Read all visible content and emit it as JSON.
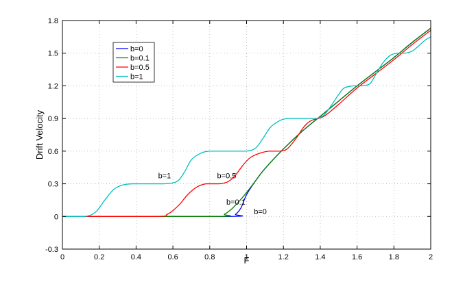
{
  "chart_data": {
    "type": "line",
    "xlabel": "F",
    "ylabel": "Drift Velocity",
    "xlim": [
      0,
      2
    ],
    "ylim": [
      -0.3,
      1.8
    ],
    "x_ticks": [
      "0",
      "0.2",
      "0.4",
      "0.6",
      "0.8",
      "1",
      "1.2",
      "1.4",
      "1.6",
      "1.8",
      "2"
    ],
    "y_ticks": [
      "-0.3",
      "0",
      "0.3",
      "0.6",
      "0.9",
      "1.2",
      "1.5",
      "1.8"
    ],
    "grid": true,
    "legend_position": "top-left",
    "series": [
      {
        "name": "b=0",
        "color": "#0000ff",
        "x": [
          0,
          0.9,
          0.94,
          0.97,
          1.0,
          1.05,
          1.1,
          1.2,
          1.3,
          1.4,
          1.5,
          1.6,
          1.7,
          1.8,
          1.9,
          2.0
        ],
        "y": [
          0,
          0,
          0.02,
          0.08,
          0.2,
          0.33,
          0.44,
          0.62,
          0.78,
          0.92,
          1.06,
          1.2,
          1.33,
          1.46,
          1.6,
          1.73
        ]
      },
      {
        "name": "b=0.1",
        "color": "#008000",
        "x": [
          0,
          0.84,
          0.88,
          0.92,
          0.96,
          1.0,
          1.05,
          1.1,
          1.2,
          1.3,
          1.4,
          1.5,
          1.6,
          1.7,
          1.8,
          1.9,
          2.0
        ],
        "y": [
          0,
          0,
          0.02,
          0.07,
          0.14,
          0.22,
          0.33,
          0.44,
          0.62,
          0.78,
          0.92,
          1.06,
          1.2,
          1.33,
          1.46,
          1.6,
          1.73
        ]
      },
      {
        "name": "b=0.5",
        "color": "#ff0000",
        "x": [
          0,
          0.5,
          0.57,
          0.63,
          0.68,
          0.73,
          0.78,
          0.85,
          0.9,
          0.94,
          0.98,
          1.02,
          1.07,
          1.12,
          1.18,
          1.22,
          1.27,
          1.31,
          1.35,
          1.42,
          1.5,
          1.6,
          1.7,
          1.8,
          1.9,
          2.0
        ],
        "y": [
          0,
          0,
          0.02,
          0.1,
          0.2,
          0.27,
          0.3,
          0.3,
          0.32,
          0.38,
          0.47,
          0.54,
          0.58,
          0.6,
          0.6,
          0.62,
          0.72,
          0.82,
          0.88,
          0.92,
          1.03,
          1.18,
          1.31,
          1.44,
          1.58,
          1.71
        ]
      },
      {
        "name": "b=1",
        "color": "#00bfbf",
        "x": [
          0,
          0.12,
          0.18,
          0.23,
          0.28,
          0.33,
          0.38,
          0.45,
          0.55,
          0.62,
          0.66,
          0.7,
          0.75,
          0.8,
          0.9,
          1.0,
          1.05,
          1.09,
          1.13,
          1.18,
          1.22,
          1.28,
          1.35,
          1.38,
          1.42,
          1.46,
          1.5,
          1.53,
          1.58,
          1.63,
          1.67,
          1.7,
          1.74,
          1.78,
          1.82,
          1.86,
          1.9,
          1.93,
          1.97,
          2.0
        ],
        "y": [
          0,
          0,
          0.04,
          0.15,
          0.25,
          0.29,
          0.3,
          0.3,
          0.3,
          0.32,
          0.4,
          0.52,
          0.58,
          0.6,
          0.6,
          0.6,
          0.63,
          0.72,
          0.82,
          0.88,
          0.9,
          0.9,
          0.9,
          0.9,
          0.93,
          1.02,
          1.12,
          1.18,
          1.2,
          1.2,
          1.22,
          1.3,
          1.41,
          1.48,
          1.5,
          1.5,
          1.52,
          1.56,
          1.62,
          1.65
        ]
      }
    ],
    "annotations": [
      {
        "text": "b=1",
        "x": 0.52,
        "y": 0.35
      },
      {
        "text": "b=0.5",
        "x": 0.84,
        "y": 0.35
      },
      {
        "text": "b=0.1",
        "x": 0.89,
        "y": 0.11
      },
      {
        "text": "b=0",
        "x": 1.04,
        "y": 0.02
      }
    ]
  }
}
